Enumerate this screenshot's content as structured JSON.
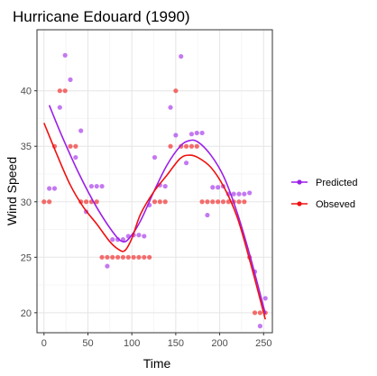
{
  "chart_data": {
    "type": "scatter",
    "title": "Hurricane Edouard (1990)",
    "xlabel": "Time",
    "ylabel": "Wind Speed",
    "xlim": [
      -8,
      260
    ],
    "ylim": [
      18.2,
      45.5
    ],
    "xticks": [
      0,
      50,
      100,
      150,
      200,
      250
    ],
    "yticks": [
      20,
      25,
      30,
      35,
      40
    ],
    "grid": true,
    "legend_position": "right",
    "series": [
      {
        "name": "Predicted",
        "color": "#9B1FE8",
        "points": [
          [
            6,
            31.2
          ],
          [
            12,
            31.2
          ],
          [
            18,
            38.5
          ],
          [
            24,
            43.2
          ],
          [
            30,
            41.0
          ],
          [
            36,
            34.0
          ],
          [
            42,
            36.4
          ],
          [
            48,
            29.1
          ],
          [
            54,
            31.4
          ],
          [
            60,
            31.4
          ],
          [
            66,
            31.4
          ],
          [
            72,
            24.2
          ],
          [
            78,
            26.6
          ],
          [
            84,
            26.6
          ],
          [
            90,
            26.6
          ],
          [
            96,
            26.9
          ],
          [
            102,
            27.0
          ],
          [
            108,
            27.0
          ],
          [
            114,
            26.9
          ],
          [
            120,
            29.7
          ],
          [
            126,
            34.0
          ],
          [
            132,
            31.5
          ],
          [
            138,
            31.4
          ],
          [
            144,
            38.5
          ],
          [
            150,
            36.0
          ],
          [
            156,
            43.1
          ],
          [
            162,
            33.5
          ],
          [
            168,
            36.1
          ],
          [
            174,
            36.2
          ],
          [
            180,
            36.2
          ],
          [
            186,
            28.8
          ],
          [
            192,
            31.3
          ],
          [
            198,
            31.3
          ],
          [
            204,
            31.4
          ],
          [
            210,
            30.7
          ],
          [
            216,
            30.7
          ],
          [
            222,
            30.7
          ],
          [
            228,
            30.7
          ],
          [
            234,
            30.8
          ],
          [
            240,
            23.7
          ],
          [
            246,
            18.8
          ],
          [
            252,
            21.3
          ]
        ],
        "smooth": [
          [
            6,
            38.7
          ],
          [
            20,
            36.0
          ],
          [
            40,
            32.5
          ],
          [
            60,
            29.5
          ],
          [
            80,
            27.1
          ],
          [
            90,
            26.4
          ],
          [
            98,
            26.8
          ],
          [
            110,
            28.3
          ],
          [
            125,
            30.9
          ],
          [
            140,
            33.3
          ],
          [
            155,
            35.0
          ],
          [
            165,
            35.5
          ],
          [
            175,
            35.4
          ],
          [
            190,
            34.2
          ],
          [
            205,
            32.2
          ],
          [
            220,
            29.0
          ],
          [
            235,
            25.0
          ],
          [
            252,
            19.9
          ]
        ]
      },
      {
        "name": "Obseved",
        "color": "#F01010",
        "points": [
          [
            0,
            30
          ],
          [
            6,
            30
          ],
          [
            12,
            35
          ],
          [
            18,
            40
          ],
          [
            24,
            40
          ],
          [
            30,
            35
          ],
          [
            36,
            35
          ],
          [
            42,
            30
          ],
          [
            48,
            30
          ],
          [
            54,
            30
          ],
          [
            60,
            30
          ],
          [
            66,
            25
          ],
          [
            72,
            25
          ],
          [
            78,
            25
          ],
          [
            84,
            25
          ],
          [
            90,
            25
          ],
          [
            96,
            25
          ],
          [
            102,
            25
          ],
          [
            108,
            25
          ],
          [
            114,
            25
          ],
          [
            120,
            25
          ],
          [
            126,
            30
          ],
          [
            132,
            30
          ],
          [
            138,
            30
          ],
          [
            144,
            35
          ],
          [
            150,
            40
          ],
          [
            156,
            35
          ],
          [
            162,
            35
          ],
          [
            168,
            35
          ],
          [
            174,
            35
          ],
          [
            180,
            30
          ],
          [
            186,
            30
          ],
          [
            192,
            30
          ],
          [
            198,
            30
          ],
          [
            204,
            30
          ],
          [
            210,
            30
          ],
          [
            216,
            30
          ],
          [
            222,
            30
          ],
          [
            228,
            30
          ],
          [
            234,
            25
          ],
          [
            240,
            20
          ],
          [
            246,
            20
          ],
          [
            252,
            20
          ]
        ],
        "smooth": [
          [
            0,
            37.1
          ],
          [
            15,
            34.2
          ],
          [
            30,
            31.5
          ],
          [
            45,
            29.5
          ],
          [
            60,
            28.0
          ],
          [
            75,
            26.4
          ],
          [
            85,
            25.7
          ],
          [
            92,
            25.6
          ],
          [
            100,
            26.7
          ],
          [
            110,
            28.9
          ],
          [
            125,
            30.9
          ],
          [
            140,
            32.4
          ],
          [
            155,
            33.9
          ],
          [
            165,
            34.2
          ],
          [
            175,
            34.0
          ],
          [
            190,
            33.1
          ],
          [
            205,
            31.3
          ],
          [
            220,
            28.6
          ],
          [
            235,
            24.5
          ],
          [
            252,
            19.4
          ]
        ]
      }
    ]
  }
}
